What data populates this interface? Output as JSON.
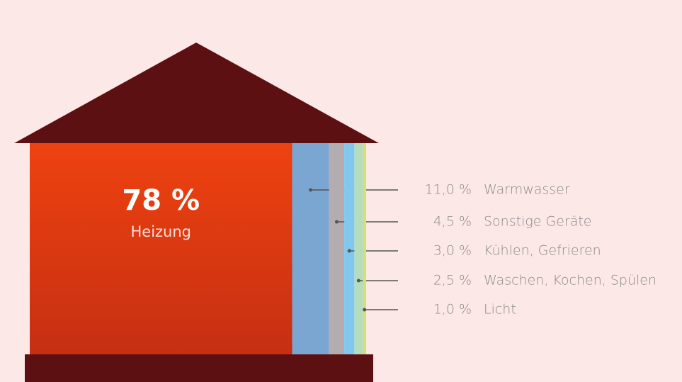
{
  "chart_data": {
    "type": "house",
    "categories": [
      "Heizung",
      "Warmwasser",
      "Sonstige Geräte",
      "Kühlen, Gefrieren",
      "Waschen, Kochen, Spülen",
      "Licht"
    ],
    "values": [
      78,
      11.0,
      4.5,
      3.0,
      2.5,
      1.0
    ],
    "value_labels": [
      "78 %",
      "11,0 %",
      "4,5 %",
      "3,0 %",
      "2,5 %",
      "1,0 %"
    ],
    "colors": [
      "#d9380f",
      "#7ba6d2",
      "#b3acb0",
      "#80c8ef",
      "#b6dcc0",
      "#cfe27a"
    ],
    "roof_color": "#5c1011"
  }
}
